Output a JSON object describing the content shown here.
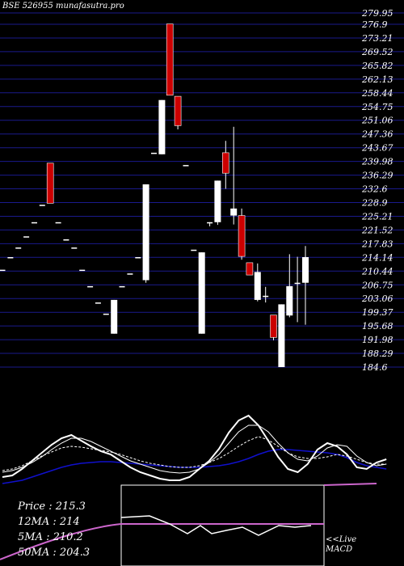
{
  "header": {
    "title": "BSE 526955 munafasutra.pro"
  },
  "chart_data": {
    "type": "candlestick",
    "y_tick_labels": [
      "279.95",
      "276.9",
      "273.21",
      "269.52",
      "265.82",
      "262.13",
      "258.44",
      "254.75",
      "251.06",
      "247.36",
      "243.67",
      "239.98",
      "236.29",
      "232.6",
      "228.9",
      "225.21",
      "221.52",
      "217.83",
      "214.14",
      "210.44",
      "206.75",
      "203.06",
      "199.37",
      "195.68",
      "191.98",
      "188.29",
      "184.6"
    ],
    "ylim": [
      184.6,
      279.95
    ],
    "candles": [
      {
        "o": 210.8,
        "h": 210.8,
        "l": 210.8,
        "c": 210.8,
        "color": "white"
      },
      {
        "o": 214.2,
        "h": 214.2,
        "l": 214.2,
        "c": 214.2,
        "color": "white"
      },
      {
        "o": 216.8,
        "h": 216.8,
        "l": 216.8,
        "c": 216.8,
        "color": "white"
      },
      {
        "o": 219.8,
        "h": 219.8,
        "l": 219.8,
        "c": 219.8,
        "color": "white"
      },
      {
        "o": 223.6,
        "h": 223.6,
        "l": 223.6,
        "c": 223.6,
        "color": "white"
      },
      {
        "o": 228.3,
        "h": 228.3,
        "l": 228.3,
        "c": 228.3,
        "color": "white"
      },
      {
        "o": 239.5,
        "h": 239.5,
        "l": 228.7,
        "c": 228.7,
        "color": "red"
      },
      {
        "o": 223.6,
        "h": 223.6,
        "l": 223.6,
        "c": 223.6,
        "color": "white"
      },
      {
        "o": 219.0,
        "h": 219.0,
        "l": 219.0,
        "c": 219.0,
        "color": "white"
      },
      {
        "o": 216.8,
        "h": 216.8,
        "l": 216.8,
        "c": 216.8,
        "color": "white"
      },
      {
        "o": 210.8,
        "h": 210.8,
        "l": 210.8,
        "c": 210.8,
        "color": "white"
      },
      {
        "o": 206.4,
        "h": 206.4,
        "l": 206.4,
        "c": 206.4,
        "color": "white"
      },
      {
        "o": 202.0,
        "h": 202.0,
        "l": 202.0,
        "c": 202.0,
        "color": "white"
      },
      {
        "o": 199.0,
        "h": 199.0,
        "l": 199.0,
        "c": 199.0,
        "color": "white"
      },
      {
        "o": 193.6,
        "h": 202.7,
        "l": 193.6,
        "c": 202.7,
        "color": "white"
      },
      {
        "o": 206.4,
        "h": 206.4,
        "l": 206.4,
        "c": 206.4,
        "color": "white"
      },
      {
        "o": 209.8,
        "h": 209.8,
        "l": 209.8,
        "c": 209.8,
        "color": "white"
      },
      {
        "o": 214.2,
        "h": 214.2,
        "l": 214.2,
        "c": 214.2,
        "color": "white"
      },
      {
        "o": 208.0,
        "h": 233.8,
        "l": 207.3,
        "c": 233.8,
        "color": "white"
      },
      {
        "o": 242.3,
        "h": 242.3,
        "l": 242.3,
        "c": 242.3,
        "color": "white"
      },
      {
        "o": 241.9,
        "h": 256.5,
        "l": 241.9,
        "c": 256.5,
        "color": "white"
      },
      {
        "o": 277.0,
        "h": 277.0,
        "l": 257.8,
        "c": 257.8,
        "color": "red"
      },
      {
        "o": 257.5,
        "h": 257.5,
        "l": 248.6,
        "c": 249.6,
        "color": "red"
      },
      {
        "o": 239.0,
        "h": 239.0,
        "l": 239.0,
        "c": 239.0,
        "color": "white"
      },
      {
        "o": 216.2,
        "h": 216.2,
        "l": 216.2,
        "c": 216.2,
        "color": "white"
      },
      {
        "o": 193.6,
        "h": 215.5,
        "l": 193.6,
        "c": 215.5,
        "color": "white"
      },
      {
        "o": 223.6,
        "h": 223.6,
        "l": 222.5,
        "c": 223.6,
        "color": "white"
      },
      {
        "o": 223.6,
        "h": 234.8,
        "l": 222.9,
        "c": 234.8,
        "color": "white"
      },
      {
        "o": 242.3,
        "h": 245.5,
        "l": 232.6,
        "c": 236.8,
        "color": "red"
      },
      {
        "o": 227.3,
        "h": 249.3,
        "l": 223.0,
        "c": 225.4,
        "color": "white"
      },
      {
        "o": 225.4,
        "h": 227.3,
        "l": 213.5,
        "c": 214.4,
        "color": "red"
      },
      {
        "o": 212.7,
        "h": 212.7,
        "l": 209.4,
        "c": 209.4,
        "color": "red"
      },
      {
        "o": 202.7,
        "h": 212.5,
        "l": 202.3,
        "c": 210.2,
        "color": "white"
      },
      {
        "o": 203.8,
        "h": 206.2,
        "l": 202.0,
        "c": 203.8,
        "color": "white"
      },
      {
        "o": 198.6,
        "h": 198.6,
        "l": 191.8,
        "c": 192.6,
        "color": "red"
      },
      {
        "o": 201.5,
        "h": 201.5,
        "l": 184.6,
        "c": 184.6,
        "color": "white"
      },
      {
        "o": 198.5,
        "h": 215.0,
        "l": 198.0,
        "c": 206.4,
        "color": "white"
      },
      {
        "o": 207.3,
        "h": 214.3,
        "l": 196.7,
        "c": 207.3,
        "color": "white"
      },
      {
        "o": 207.3,
        "h": 217.2,
        "l": 196.0,
        "c": 214.2,
        "color": "white"
      }
    ],
    "indicator_lines": {
      "price": [
        10,
        12,
        20,
        30,
        40,
        50,
        58,
        62,
        55,
        48,
        42,
        38,
        30,
        22,
        16,
        12,
        8,
        6,
        6,
        10,
        20,
        30,
        45,
        65,
        80,
        86,
        74,
        55,
        35,
        20,
        16,
        26,
        44,
        52,
        48,
        38,
        22,
        20,
        28,
        32
      ],
      "ma12": [
        18,
        20,
        24,
        30,
        36,
        41,
        46,
        48,
        47,
        45,
        43,
        41,
        38,
        34,
        30,
        27,
        25,
        23,
        22,
        22,
        24,
        28,
        33,
        40,
        48,
        55,
        60,
        56,
        48,
        40,
        35,
        33,
        33,
        35,
        38,
        36,
        32,
        28,
        26,
        26
      ],
      "ma5": [
        16,
        18,
        22,
        28,
        35,
        44,
        52,
        58,
        58,
        54,
        48,
        42,
        36,
        30,
        26,
        22,
        18,
        16,
        15,
        16,
        20,
        28,
        38,
        52,
        66,
        74,
        74,
        66,
        52,
        40,
        32,
        30,
        36,
        46,
        50,
        48,
        36,
        28,
        24,
        26
      ],
      "ma50": [
        2,
        4,
        6,
        10,
        14,
        18,
        22,
        25,
        27,
        28,
        29,
        29,
        28,
        27,
        26,
        25,
        24,
        23,
        22,
        22,
        22,
        23,
        24,
        26,
        29,
        33,
        38,
        42,
        44,
        44,
        43,
        42,
        41,
        40,
        38,
        34,
        28,
        24,
        22,
        20
      ]
    },
    "macd_panel": {
      "series": [
        4,
        4,
        4,
        4,
        4,
        4,
        4,
        4,
        4,
        4,
        4,
        4,
        4,
        4,
        4,
        4,
        4,
        4,
        10,
        11,
        11,
        11,
        5,
        4,
        3,
        5,
        4,
        5,
        3,
        4,
        5,
        4,
        3,
        4,
        4,
        4,
        4,
        4,
        4,
        4
      ],
      "signal": [
        2,
        2,
        2,
        2,
        2,
        2,
        2,
        2,
        2,
        2,
        2,
        2,
        2,
        2,
        2,
        2,
        2,
        2,
        3,
        4,
        4,
        5,
        5,
        6,
        7,
        8,
        8,
        8,
        8,
        8,
        8,
        8,
        8,
        8,
        8,
        8,
        8,
        8,
        8,
        8
      ],
      "label_live": "<<Live",
      "label_macd": "MACD"
    },
    "colors": {
      "background": "#000000",
      "grid": "#1a1a8c",
      "candle_up": "#ffffff",
      "candle_down": "#cc0000",
      "ma_white": "#ffffff",
      "ma_blue": "#1010cc",
      "macd_pink": "#cc66cc"
    }
  },
  "stats": {
    "price": "Price   : 215.3",
    "ma12": "12MA : 214",
    "ma5": "5MA : 210.2",
    "ma50": "50MA : 204.3"
  }
}
